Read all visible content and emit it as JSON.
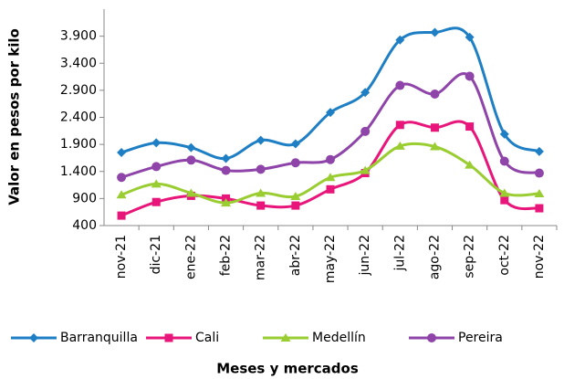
{
  "chart_data": {
    "type": "line",
    "y_label": "Valor en pesos por kilo",
    "x_label": "Meses  y mercados",
    "categories": [
      "nov-21",
      "dic-21",
      "ene-22",
      "feb-22",
      "mar-22",
      "abr-22",
      "may-22",
      "jun-22",
      "jul-22",
      "ago-22",
      "sep-22",
      "oct-22",
      "nov-22"
    ],
    "ylim": [
      400,
      4400
    ],
    "yticks": [
      {
        "value": 400,
        "label": "400"
      },
      {
        "value": 900,
        "label": "900"
      },
      {
        "value": 1400,
        "label": "1.400"
      },
      {
        "value": 1900,
        "label": "1.900"
      },
      {
        "value": 2400,
        "label": "2.400"
      },
      {
        "value": 2900,
        "label": "2.900"
      },
      {
        "value": 3400,
        "label": "3.400"
      },
      {
        "value": 3900,
        "label": "3.900"
      }
    ],
    "legend": "bottom",
    "series": [
      {
        "name": "Barranquilla",
        "color": "#1f7fc4",
        "marker": "diamond",
        "values": [
          1750,
          1930,
          1840,
          1640,
          1975,
          1910,
          2490,
          2860,
          3830,
          3970,
          3880,
          2090,
          1770
        ]
      },
      {
        "name": "Cali",
        "color": "#e8157a",
        "marker": "square",
        "values": [
          584,
          835,
          950,
          900,
          770,
          770,
          1070,
          1370,
          2260,
          2210,
          2230,
          870,
          720
        ]
      },
      {
        "name": "Medellín",
        "color": "#9acd32",
        "marker": "triangle",
        "values": [
          970,
          1170,
          1000,
          820,
          1000,
          940,
          1290,
          1420,
          1870,
          1860,
          1520,
          1000,
          990
        ]
      },
      {
        "name": "Pereira",
        "color": "#8e44a8",
        "marker": "circle",
        "values": [
          1290,
          1490,
          1610,
          1420,
          1440,
          1560,
          1620,
          2140,
          2990,
          2830,
          3160,
          1590,
          1370
        ]
      }
    ]
  }
}
